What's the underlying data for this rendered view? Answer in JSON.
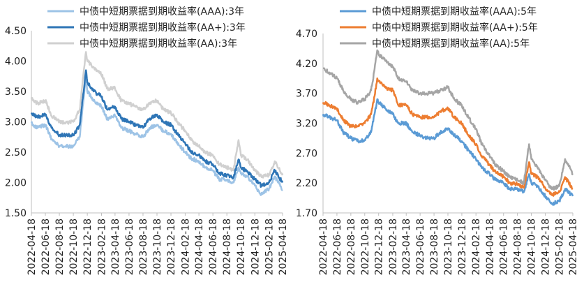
{
  "chart_data": [
    {
      "type": "line",
      "title": "",
      "xlabel": "",
      "ylabel": "",
      "ylim": [
        1.5,
        4.5
      ],
      "yticks": [
        "1.50",
        "2.00",
        "2.50",
        "3.00",
        "3.50",
        "4.00",
        "4.50"
      ],
      "x_ticks": [
        "2022-04-18",
        "2022-06-18",
        "2022-08-18",
        "2022-10-18",
        "2022-12-18",
        "2023-02-18",
        "2023-04-18",
        "2023-06-18",
        "2023-08-18",
        "2023-10-18",
        "2023-12-18",
        "2024-02-18",
        "2024-04-18",
        "2024-06-18",
        "2024-08-18",
        "2024-10-18",
        "2024-12-18",
        "2025-02-18",
        "2025-04-18"
      ],
      "legend_position": "top",
      "grid": false,
      "series": [
        {
          "name": "中债中短期票据到期收益率(AAA):3年",
          "color": "#9dc3e6",
          "x": [
            "2022-04-18",
            "2022-05-15",
            "2022-06-18",
            "2022-07-15",
            "2022-08-18",
            "2022-09-15",
            "2022-10-18",
            "2022-11-15",
            "2022-11-30",
            "2022-12-12",
            "2022-12-18",
            "2023-01-15",
            "2023-02-18",
            "2023-03-15",
            "2023-04-18",
            "2023-05-15",
            "2023-06-18",
            "2023-07-15",
            "2023-08-18",
            "2023-09-15",
            "2023-10-18",
            "2023-11-15",
            "2023-12-18",
            "2024-01-15",
            "2024-02-18",
            "2024-03-15",
            "2024-04-18",
            "2024-05-15",
            "2024-06-18",
            "2024-07-15",
            "2024-08-18",
            "2024-09-15",
            "2024-10-08",
            "2024-10-18",
            "2024-11-15",
            "2024-12-18",
            "2025-01-15",
            "2025-02-18",
            "2025-03-15",
            "2025-04-18"
          ],
          "values": [
            2.98,
            2.9,
            2.95,
            2.72,
            2.6,
            2.6,
            2.6,
            2.75,
            3.3,
            3.75,
            3.5,
            3.35,
            3.25,
            3.05,
            3.1,
            2.9,
            2.85,
            2.8,
            2.75,
            2.9,
            2.95,
            2.85,
            2.8,
            2.65,
            2.5,
            2.4,
            2.35,
            2.25,
            2.2,
            2.05,
            2.05,
            2.0,
            2.25,
            2.15,
            2.1,
            1.95,
            1.8,
            1.9,
            2.1,
            1.88
          ]
        },
        {
          "name": "中债中短期票据到期收益率(AA+):3年",
          "color": "#2e75b6",
          "x": [
            "2022-04-18",
            "2022-05-15",
            "2022-06-18",
            "2022-07-15",
            "2022-08-18",
            "2022-09-15",
            "2022-10-18",
            "2022-11-15",
            "2022-11-30",
            "2022-12-12",
            "2022-12-18",
            "2023-01-15",
            "2023-02-18",
            "2023-03-15",
            "2023-04-18",
            "2023-05-15",
            "2023-06-18",
            "2023-07-15",
            "2023-08-18",
            "2023-09-15",
            "2023-10-18",
            "2023-11-15",
            "2023-12-18",
            "2024-01-15",
            "2024-02-18",
            "2024-03-15",
            "2024-04-18",
            "2024-05-15",
            "2024-06-18",
            "2024-07-15",
            "2024-08-18",
            "2024-09-15",
            "2024-10-08",
            "2024-10-18",
            "2024-11-15",
            "2024-12-18",
            "2025-01-15",
            "2025-02-18",
            "2025-03-15",
            "2025-04-18"
          ],
          "values": [
            3.15,
            3.08,
            3.12,
            2.9,
            2.78,
            2.78,
            2.78,
            2.95,
            3.45,
            3.85,
            3.65,
            3.5,
            3.42,
            3.2,
            3.25,
            3.05,
            3.0,
            2.95,
            2.9,
            3.05,
            3.12,
            3.0,
            2.95,
            2.8,
            2.65,
            2.5,
            2.45,
            2.35,
            2.3,
            2.15,
            2.12,
            2.08,
            2.38,
            2.25,
            2.18,
            2.05,
            1.95,
            2.0,
            2.2,
            2.0
          ]
        },
        {
          "name": "中债中短期票据到期收益率(AA):3年",
          "color": "#d0d0d0",
          "x": [
            "2022-04-18",
            "2022-05-15",
            "2022-06-18",
            "2022-07-15",
            "2022-08-18",
            "2022-09-15",
            "2022-10-18",
            "2022-11-15",
            "2022-11-30",
            "2022-12-12",
            "2022-12-18",
            "2023-01-15",
            "2023-02-18",
            "2023-03-15",
            "2023-04-18",
            "2023-05-15",
            "2023-06-18",
            "2023-07-15",
            "2023-08-18",
            "2023-09-15",
            "2023-10-18",
            "2023-11-15",
            "2023-12-18",
            "2024-01-15",
            "2024-02-18",
            "2024-03-15",
            "2024-04-18",
            "2024-05-15",
            "2024-06-18",
            "2024-07-15",
            "2024-08-18",
            "2024-09-15",
            "2024-10-08",
            "2024-10-18",
            "2024-11-15",
            "2024-12-18",
            "2025-01-15",
            "2025-02-18",
            "2025-03-15",
            "2025-04-18"
          ],
          "values": [
            3.4,
            3.3,
            3.35,
            3.1,
            3.0,
            2.98,
            3.0,
            3.2,
            3.75,
            4.15,
            4.0,
            3.9,
            3.78,
            3.55,
            3.55,
            3.35,
            3.3,
            3.25,
            3.2,
            3.3,
            3.35,
            3.2,
            3.15,
            3.0,
            2.85,
            2.7,
            2.6,
            2.5,
            2.45,
            2.3,
            2.25,
            2.2,
            2.7,
            2.45,
            2.38,
            2.2,
            2.1,
            2.12,
            2.35,
            2.12
          ]
        }
      ]
    },
    {
      "type": "line",
      "title": "",
      "xlabel": "",
      "ylabel": "",
      "ylim": [
        1.7,
        4.7
      ],
      "yticks": [
        "1.70",
        "2.20",
        "2.70",
        "3.20",
        "3.70",
        "4.20",
        "4.70"
      ],
      "x_ticks": [
        "2022-04-18",
        "2022-06-18",
        "2022-08-18",
        "2022-10-18",
        "2022-12-18",
        "2023-02-18",
        "2023-04-18",
        "2023-06-18",
        "2023-08-18",
        "2023-10-18",
        "2023-12-18",
        "2024-02-18",
        "2024-04-18",
        "2024-06-18",
        "2024-08-18",
        "2024-10-18",
        "2024-12-18",
        "2025-02-18",
        "2025-04-18"
      ],
      "legend_position": "top",
      "grid": false,
      "series": [
        {
          "name": "中债中短期票据到期收益率(AAA):5年",
          "color": "#5b9bd5",
          "x": [
            "2022-04-18",
            "2022-05-15",
            "2022-06-18",
            "2022-07-15",
            "2022-08-18",
            "2022-09-15",
            "2022-10-18",
            "2022-11-15",
            "2022-11-30",
            "2022-12-12",
            "2022-12-18",
            "2023-01-15",
            "2023-02-18",
            "2023-03-15",
            "2023-04-18",
            "2023-05-15",
            "2023-06-18",
            "2023-07-15",
            "2023-08-18",
            "2023-09-15",
            "2023-10-18",
            "2023-11-15",
            "2023-12-18",
            "2024-01-15",
            "2024-02-18",
            "2024-03-15",
            "2024-04-18",
            "2024-05-15",
            "2024-06-18",
            "2024-07-15",
            "2024-08-18",
            "2024-09-15",
            "2024-10-08",
            "2024-10-18",
            "2024-11-15",
            "2024-12-18",
            "2025-01-15",
            "2025-02-18",
            "2025-03-15",
            "2025-04-18"
          ],
          "values": [
            3.35,
            3.3,
            3.25,
            3.05,
            2.95,
            2.9,
            2.92,
            3.05,
            3.35,
            3.6,
            3.55,
            3.45,
            3.35,
            3.2,
            3.2,
            3.05,
            3.0,
            2.95,
            2.95,
            3.05,
            3.1,
            3.0,
            2.9,
            2.75,
            2.6,
            2.45,
            2.35,
            2.25,
            2.2,
            2.1,
            2.1,
            2.05,
            2.35,
            2.2,
            2.15,
            1.98,
            1.85,
            1.9,
            2.1,
            1.98
          ]
        },
        {
          "name": "中债中短期票据到期收益率(AA+):5年",
          "color": "#ed7d31",
          "x": [
            "2022-04-18",
            "2022-05-15",
            "2022-06-18",
            "2022-07-15",
            "2022-08-18",
            "2022-09-15",
            "2022-10-18",
            "2022-11-15",
            "2022-11-30",
            "2022-12-12",
            "2022-12-18",
            "2023-01-15",
            "2023-02-18",
            "2023-03-15",
            "2023-04-18",
            "2023-05-15",
            "2023-06-18",
            "2023-07-15",
            "2023-08-18",
            "2023-09-15",
            "2023-10-18",
            "2023-11-15",
            "2023-12-18",
            "2024-01-15",
            "2024-02-18",
            "2024-03-15",
            "2024-04-18",
            "2024-05-15",
            "2024-06-18",
            "2024-07-15",
            "2024-08-18",
            "2024-09-15",
            "2024-10-08",
            "2024-10-18",
            "2024-11-15",
            "2024-12-18",
            "2025-01-15",
            "2025-02-18",
            "2025-03-15",
            "2025-04-18"
          ],
          "values": [
            3.55,
            3.5,
            3.45,
            3.25,
            3.15,
            3.15,
            3.2,
            3.35,
            3.65,
            3.95,
            3.9,
            3.8,
            3.75,
            3.5,
            3.5,
            3.35,
            3.3,
            3.3,
            3.3,
            3.4,
            3.45,
            3.3,
            3.2,
            3.0,
            2.85,
            2.65,
            2.5,
            2.38,
            2.3,
            2.2,
            2.18,
            2.12,
            2.55,
            2.35,
            2.3,
            2.12,
            2.0,
            2.05,
            2.3,
            2.1
          ]
        },
        {
          "name": "中债中短期票据到期收益率(AA):5年",
          "color": "#a5a5a5",
          "x": [
            "2022-04-18",
            "2022-05-15",
            "2022-06-18",
            "2022-07-15",
            "2022-08-18",
            "2022-09-15",
            "2022-10-18",
            "2022-11-15",
            "2022-11-30",
            "2022-12-12",
            "2022-12-18",
            "2023-01-15",
            "2023-02-18",
            "2023-03-15",
            "2023-04-18",
            "2023-05-15",
            "2023-06-18",
            "2023-07-15",
            "2023-08-18",
            "2023-09-15",
            "2023-10-18",
            "2023-11-15",
            "2023-12-18",
            "2024-01-15",
            "2024-02-18",
            "2024-03-15",
            "2024-04-18",
            "2024-05-15",
            "2024-06-18",
            "2024-07-15",
            "2024-08-18",
            "2024-09-15",
            "2024-10-08",
            "2024-10-18",
            "2024-11-15",
            "2024-12-18",
            "2025-01-15",
            "2025-02-18",
            "2025-03-15",
            "2025-04-18"
          ],
          "values": [
            4.12,
            4.05,
            3.95,
            3.75,
            3.6,
            3.55,
            3.6,
            3.75,
            4.1,
            4.42,
            4.35,
            4.25,
            4.15,
            3.95,
            3.9,
            3.75,
            3.7,
            3.7,
            3.7,
            3.75,
            3.8,
            3.6,
            3.5,
            3.3,
            3.1,
            2.85,
            2.65,
            2.5,
            2.4,
            2.3,
            2.25,
            2.2,
            2.85,
            2.6,
            2.45,
            2.25,
            2.1,
            2.15,
            2.6,
            2.35
          ]
        }
      ]
    }
  ]
}
